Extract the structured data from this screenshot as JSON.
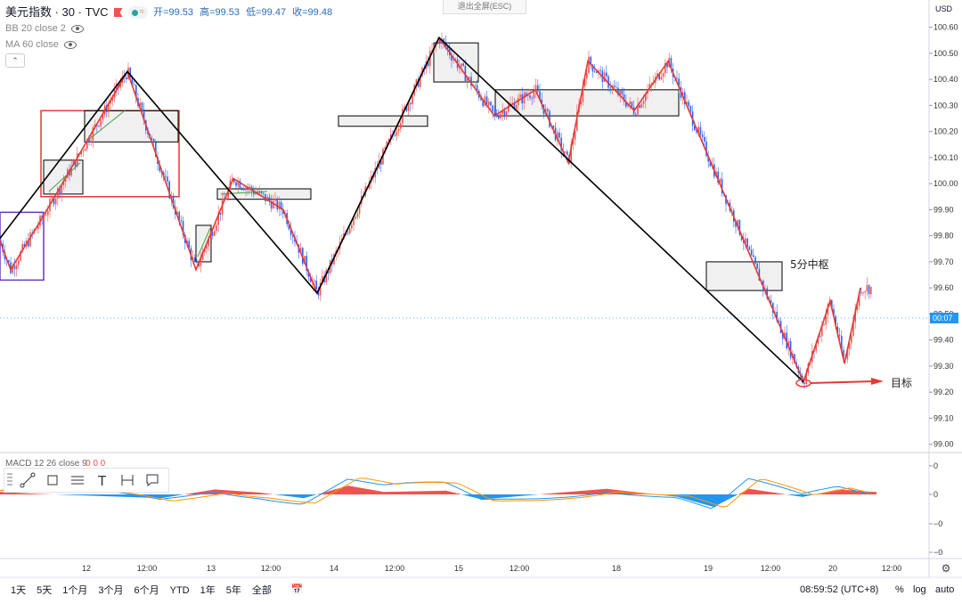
{
  "legend": {
    "symbol": "美元指数 · 30 · TVC",
    "ohlc": {
      "open": "开=99.53",
      "high": "高=99.53",
      "low": "低=99.47",
      "close": "收=99.48"
    },
    "indicators": [
      "BB 20 close 2",
      "MA 60 close"
    ]
  },
  "esc_label": "退出全屏(ESC)",
  "currency": "USD",
  "macd_label": "MACD 12 26 close 9",
  "macd_values": "0  0  0",
  "bottom": {
    "timeframes": [
      "1天",
      "5天",
      "1个月",
      "3个月",
      "6个月",
      "YTD",
      "1年",
      "5年",
      "全部"
    ],
    "clock": "08:59:52 (UTC+8)",
    "percent": "%",
    "log": "log",
    "auto": "auto"
  },
  "annotations": {
    "zhongshu": "5分中枢",
    "target": "目标"
  },
  "colors": {
    "up": "#ef5350",
    "down": "#2962ff",
    "stroke": "#e53935",
    "bi": "#000000",
    "macd_up": "#ef5350",
    "macd_down": "#2196f3"
  },
  "chart_data": {
    "type": "line",
    "price_axis": {
      "ticks": [
        "100.60",
        "100.50",
        "100.40",
        "100.30",
        "100.20",
        "100.10",
        "100.00",
        "99.90",
        "99.80",
        "99.70",
        "99.60",
        "99.50",
        "99.40",
        "99.30",
        "99.20",
        "99.10",
        "99.00"
      ],
      "range": [
        98.97,
        100.66
      ],
      "last_label": "00:07"
    },
    "macd_axis": {
      "ticks": [
        "0",
        "0",
        "−0",
        "−0"
      ]
    },
    "x_ticks": [
      "12",
      "12:00",
      "13",
      "12:00",
      "14",
      "12:00",
      "15",
      "12:00",
      "18",
      "19",
      "12:00",
      "20",
      "12:00"
    ],
    "stroke_path": {
      "name": "",
      "points": [
        [
          0,
          99.78
        ],
        [
          12,
          99.67
        ],
        [
          46,
          99.86
        ],
        [
          143,
          100.43
        ],
        [
          220,
          99.67
        ],
        [
          262,
          100.02
        ],
        [
          318,
          99.9
        ],
        [
          356,
          99.58
        ],
        [
          493,
          100.56
        ],
        [
          555,
          100.26
        ],
        [
          601,
          100.36
        ],
        [
          638,
          100.08
        ],
        [
          660,
          100.47
        ],
        [
          712,
          100.28
        ],
        [
          750,
          100.47
        ],
        [
          902,
          99.24
        ],
        [
          932,
          99.55
        ],
        [
          948,
          99.31
        ],
        [
          966,
          99.6
        ]
      ]
    },
    "bi_path": {
      "name": "",
      "points": [
        [
          0,
          99.79
        ],
        [
          143,
          100.43
        ],
        [
          356,
          99.58
        ],
        [
          493,
          100.56
        ],
        [
          902,
          99.24
        ]
      ]
    },
    "boxes": [
      {
        "color": "#e53935",
        "x": [
          46,
          201
        ],
        "y": [
          99.95,
          100.28
        ]
      },
      {
        "color": "#673ab7",
        "x": [
          0,
          49
        ],
        "y": [
          99.63,
          99.89
        ]
      },
      {
        "color": "#000000",
        "x": [
          49,
          93
        ],
        "y": [
          99.96,
          100.09
        ]
      },
      {
        "color": "#000000",
        "x": [
          95,
          200
        ],
        "y": [
          100.16,
          100.28
        ]
      },
      {
        "color": "#000000",
        "x": [
          220,
          237
        ],
        "y": [
          99.7,
          99.84
        ]
      },
      {
        "color": "#000000",
        "x": [
          244,
          349
        ],
        "y": [
          99.94,
          99.98
        ]
      },
      {
        "color": "#000000",
        "x": [
          380,
          480
        ],
        "y": [
          100.22,
          100.26
        ]
      },
      {
        "color": "#000000",
        "x": [
          487,
          537
        ],
        "y": [
          100.39,
          100.54
        ]
      },
      {
        "color": "#000000",
        "x": [
          556,
          762
        ],
        "y": [
          100.26,
          100.36
        ]
      },
      {
        "color": "#000000",
        "x": [
          793,
          878
        ],
        "y": [
          99.59,
          99.7
        ]
      }
    ]
  }
}
